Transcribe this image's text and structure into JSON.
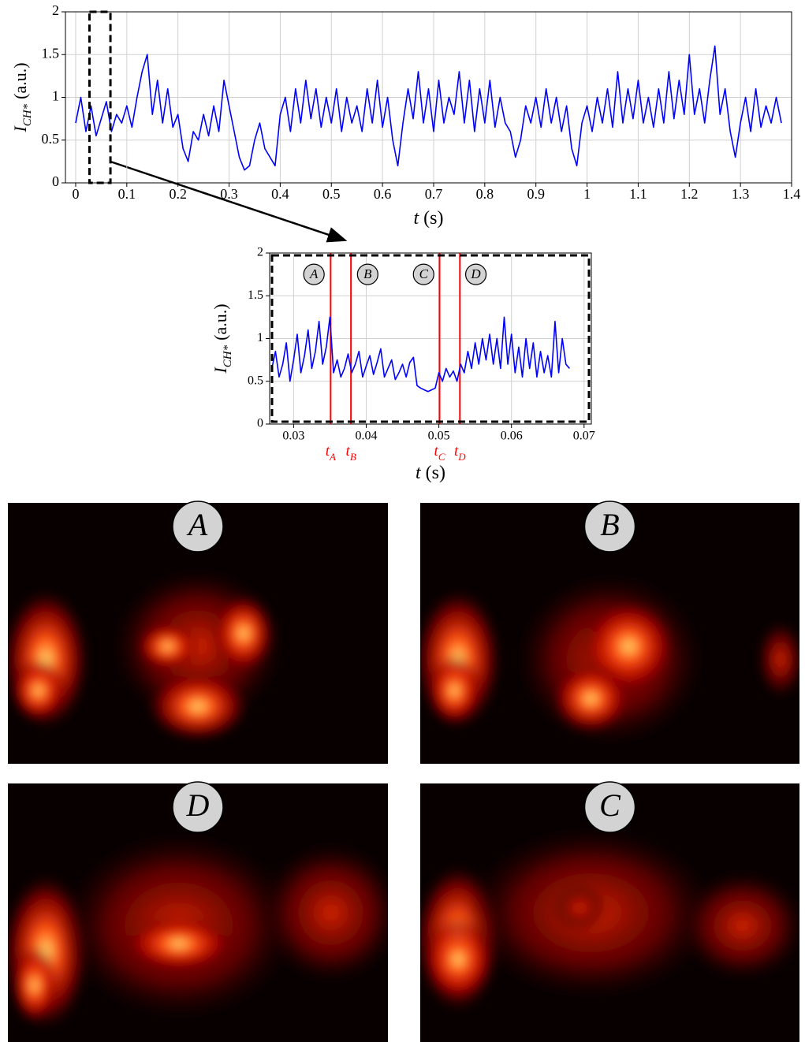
{
  "chart_data": [
    {
      "type": "line",
      "xlabel": {
        "main": "t",
        "unit": "(s)"
      },
      "ylabel": {
        "main": "I",
        "sub": "CH*",
        "unit": "(a.u.)"
      },
      "x": [
        0,
        0.01,
        0.02,
        0.03,
        0.04,
        0.05,
        0.06,
        0.07,
        0.08,
        0.09,
        0.1,
        0.11,
        0.12,
        0.13,
        0.14,
        0.15,
        0.16,
        0.17,
        0.18,
        0.19,
        0.2,
        0.21,
        0.22,
        0.23,
        0.24,
        0.25,
        0.26,
        0.27,
        0.28,
        0.29,
        0.3,
        0.31,
        0.32,
        0.33,
        0.34,
        0.35,
        0.36,
        0.37,
        0.38,
        0.39,
        0.4,
        0.41,
        0.42,
        0.43,
        0.44,
        0.45,
        0.46,
        0.47,
        0.48,
        0.49,
        0.5,
        0.51,
        0.52,
        0.53,
        0.54,
        0.55,
        0.56,
        0.57,
        0.58,
        0.59,
        0.6,
        0.61,
        0.62,
        0.63,
        0.64,
        0.65,
        0.66,
        0.67,
        0.68,
        0.69,
        0.7,
        0.71,
        0.72,
        0.73,
        0.74,
        0.75,
        0.76,
        0.77,
        0.78,
        0.79,
        0.8,
        0.81,
        0.82,
        0.83,
        0.84,
        0.85,
        0.86,
        0.87,
        0.88,
        0.89,
        0.9,
        0.91,
        0.92,
        0.93,
        0.94,
        0.95,
        0.96,
        0.97,
        0.98,
        0.99,
        1,
        1.01,
        1.02,
        1.03,
        1.04,
        1.05,
        1.06,
        1.07,
        1.08,
        1.09,
        1.1,
        1.11,
        1.12,
        1.13,
        1.14,
        1.15,
        1.16,
        1.17,
        1.18,
        1.19,
        1.2,
        1.21,
        1.22,
        1.23,
        1.24,
        1.25,
        1.26,
        1.27,
        1.28,
        1.29,
        1.3,
        1.31,
        1.32,
        1.33,
        1.34,
        1.35,
        1.36,
        1.37,
        1.38
      ],
      "values": [
        0.7,
        1.0,
        0.6,
        0.9,
        0.55,
        0.75,
        0.95,
        0.6,
        0.8,
        0.7,
        0.9,
        0.65,
        1.0,
        1.3,
        1.5,
        0.8,
        1.2,
        0.7,
        1.1,
        0.65,
        0.8,
        0.4,
        0.25,
        0.6,
        0.5,
        0.8,
        0.55,
        0.9,
        0.6,
        1.2,
        0.9,
        0.6,
        0.3,
        0.15,
        0.2,
        0.5,
        0.7,
        0.4,
        0.3,
        0.2,
        0.8,
        1.0,
        0.6,
        1.1,
        0.7,
        1.2,
        0.75,
        1.1,
        0.65,
        1.0,
        0.7,
        1.1,
        0.6,
        1.0,
        0.7,
        0.9,
        0.6,
        1.1,
        0.7,
        1.2,
        0.65,
        1.0,
        0.5,
        0.2,
        0.7,
        1.1,
        0.75,
        1.3,
        0.7,
        1.1,
        0.6,
        1.2,
        0.7,
        1.0,
        0.8,
        1.3,
        0.7,
        1.2,
        0.6,
        1.1,
        0.7,
        1.2,
        0.65,
        1.0,
        0.7,
        0.6,
        0.3,
        0.5,
        0.9,
        0.7,
        1.0,
        0.65,
        1.1,
        0.7,
        1.0,
        0.6,
        0.9,
        0.4,
        0.2,
        0.7,
        0.9,
        0.6,
        1.0,
        0.7,
        1.1,
        0.65,
        1.3,
        0.7,
        1.1,
        0.75,
        1.2,
        0.7,
        1.0,
        0.65,
        1.1,
        0.7,
        1.3,
        0.75,
        1.2,
        0.8,
        1.5,
        0.8,
        1.1,
        0.7,
        1.2,
        1.6,
        0.8,
        1.1,
        0.6,
        0.3,
        0.7,
        1.0,
        0.6,
        1.1,
        0.65,
        0.9,
        0.7,
        1.0,
        0.7
      ],
      "color": "#0000ff",
      "xlim": [
        -0.02,
        1.4
      ],
      "ylim": [
        0,
        2
      ],
      "xticks": [
        0,
        0.1,
        0.2,
        0.3,
        0.4,
        0.5,
        0.6,
        0.7,
        0.8,
        0.9,
        1,
        1.1,
        1.2,
        1.3,
        1.4
      ],
      "yticks": [
        0,
        0.5,
        1,
        1.5,
        2
      ],
      "grid": true,
      "highlight": {
        "xlim": [
          0.027,
          0.068
        ],
        "ylim": [
          0,
          2
        ]
      }
    },
    {
      "type": "line",
      "xlabel": {
        "main": "t",
        "unit": "(s)"
      },
      "ylabel": {
        "main": "I",
        "sub": "CH*",
        "unit": "(a.u.)"
      },
      "x": [
        0.027,
        0.0275,
        0.028,
        0.0285,
        0.029,
        0.0295,
        0.03,
        0.0305,
        0.031,
        0.0315,
        0.032,
        0.0325,
        0.033,
        0.0335,
        0.034,
        0.0345,
        0.035,
        0.0355,
        0.036,
        0.0365,
        0.037,
        0.0375,
        0.038,
        0.0385,
        0.039,
        0.0395,
        0.04,
        0.0405,
        0.041,
        0.0415,
        0.042,
        0.0425,
        0.043,
        0.0435,
        0.044,
        0.0445,
        0.045,
        0.0455,
        0.046,
        0.0465,
        0.047,
        0.0475,
        0.048,
        0.0485,
        0.049,
        0.0495,
        0.05,
        0.0505,
        0.051,
        0.0515,
        0.052,
        0.0525,
        0.053,
        0.0535,
        0.054,
        0.0545,
        0.055,
        0.0555,
        0.056,
        0.0565,
        0.057,
        0.0575,
        0.058,
        0.0585,
        0.059,
        0.0595,
        0.06,
        0.0605,
        0.061,
        0.0615,
        0.062,
        0.0625,
        0.063,
        0.0635,
        0.064,
        0.0645,
        0.065,
        0.0655,
        0.066,
        0.0665,
        0.067,
        0.0675,
        0.068
      ],
      "values": [
        0.65,
        0.85,
        0.55,
        0.7,
        0.95,
        0.5,
        0.75,
        1.05,
        0.6,
        0.8,
        1.1,
        0.65,
        0.85,
        1.2,
        0.7,
        0.9,
        1.25,
        0.6,
        0.75,
        0.55,
        0.65,
        0.82,
        0.6,
        0.7,
        0.85,
        0.55,
        0.68,
        0.8,
        0.58,
        0.72,
        0.88,
        0.55,
        0.65,
        0.75,
        0.52,
        0.6,
        0.7,
        0.55,
        0.72,
        0.78,
        0.45,
        0.42,
        0.4,
        0.38,
        0.4,
        0.42,
        0.6,
        0.5,
        0.65,
        0.55,
        0.62,
        0.5,
        0.7,
        0.6,
        0.85,
        0.65,
        0.95,
        0.7,
        1.0,
        0.75,
        1.05,
        0.7,
        1.0,
        0.65,
        1.25,
        0.7,
        1.05,
        0.6,
        0.9,
        0.55,
        1.0,
        0.65,
        0.95,
        0.55,
        0.85,
        0.6,
        0.8,
        0.55,
        1.2,
        0.6,
        1.0,
        0.7,
        0.65
      ],
      "color": "#0000ff",
      "xlim": [
        0.0267,
        0.071
      ],
      "ylim": [
        0,
        2
      ],
      "xticks": [
        0.03,
        0.04,
        0.05,
        0.06,
        0.07
      ],
      "yticks": [
        0,
        0.5,
        1,
        1.5,
        2
      ],
      "grid": true,
      "markers": [
        {
          "x": 0.0351,
          "label": "t",
          "sub": "A",
          "color": "#ff0000"
        },
        {
          "x": 0.0379,
          "label": "t",
          "sub": "B",
          "color": "#ff0000"
        },
        {
          "x": 0.0501,
          "label": "t",
          "sub": "C",
          "color": "#ff0000"
        },
        {
          "x": 0.0529,
          "label": "t",
          "sub": "D",
          "color": "#ff0000"
        }
      ],
      "annotations": [
        {
          "x": 0.0328,
          "y": 1.75,
          "text": "A"
        },
        {
          "x": 0.0402,
          "y": 1.75,
          "text": "B"
        },
        {
          "x": 0.0479,
          "y": 1.75,
          "text": "C"
        },
        {
          "x": 0.0551,
          "y": 1.75,
          "text": "D"
        }
      ]
    }
  ],
  "images": [
    {
      "label": "A"
    },
    {
      "label": "B"
    },
    {
      "label": "D"
    },
    {
      "label": "C"
    }
  ]
}
